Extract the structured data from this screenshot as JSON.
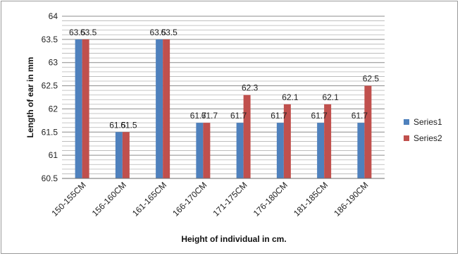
{
  "chart_data": {
    "type": "bar",
    "title": "",
    "xlabel": "Height  of individual  in cm.",
    "ylabel": "Length of ear in mm",
    "ylim": [
      60.5,
      64
    ],
    "yticks": [
      "60.5",
      "61",
      "61.5",
      "62",
      "62.5",
      "63",
      "63.5",
      "64"
    ],
    "grid": true,
    "legend_position": "right",
    "categories": [
      "150-155CM",
      "156-160CM",
      "161-165CM",
      "166-170CM",
      "171-175CM",
      "176-180CM",
      "181-185CM",
      "186-190CM"
    ],
    "series": [
      {
        "name": "Series1",
        "color": "#4f81bd",
        "values": [
          63.5,
          61.5,
          63.5,
          61.7,
          61.7,
          61.7,
          61.7,
          61.7
        ],
        "labels": [
          "63.5",
          "61.5",
          "63.5",
          "61.7",
          "61.7",
          "61.7",
          "61.7",
          "61.7"
        ]
      },
      {
        "name": "Series2",
        "color": "#c0504d",
        "values": [
          63.5,
          61.5,
          63.5,
          61.7,
          62.3,
          62.1,
          62.1,
          62.5
        ],
        "labels": [
          "63.5",
          "61.5",
          "63.5",
          "61.7",
          "62.3",
          "62.1",
          "62.1",
          "62.5"
        ]
      }
    ]
  }
}
